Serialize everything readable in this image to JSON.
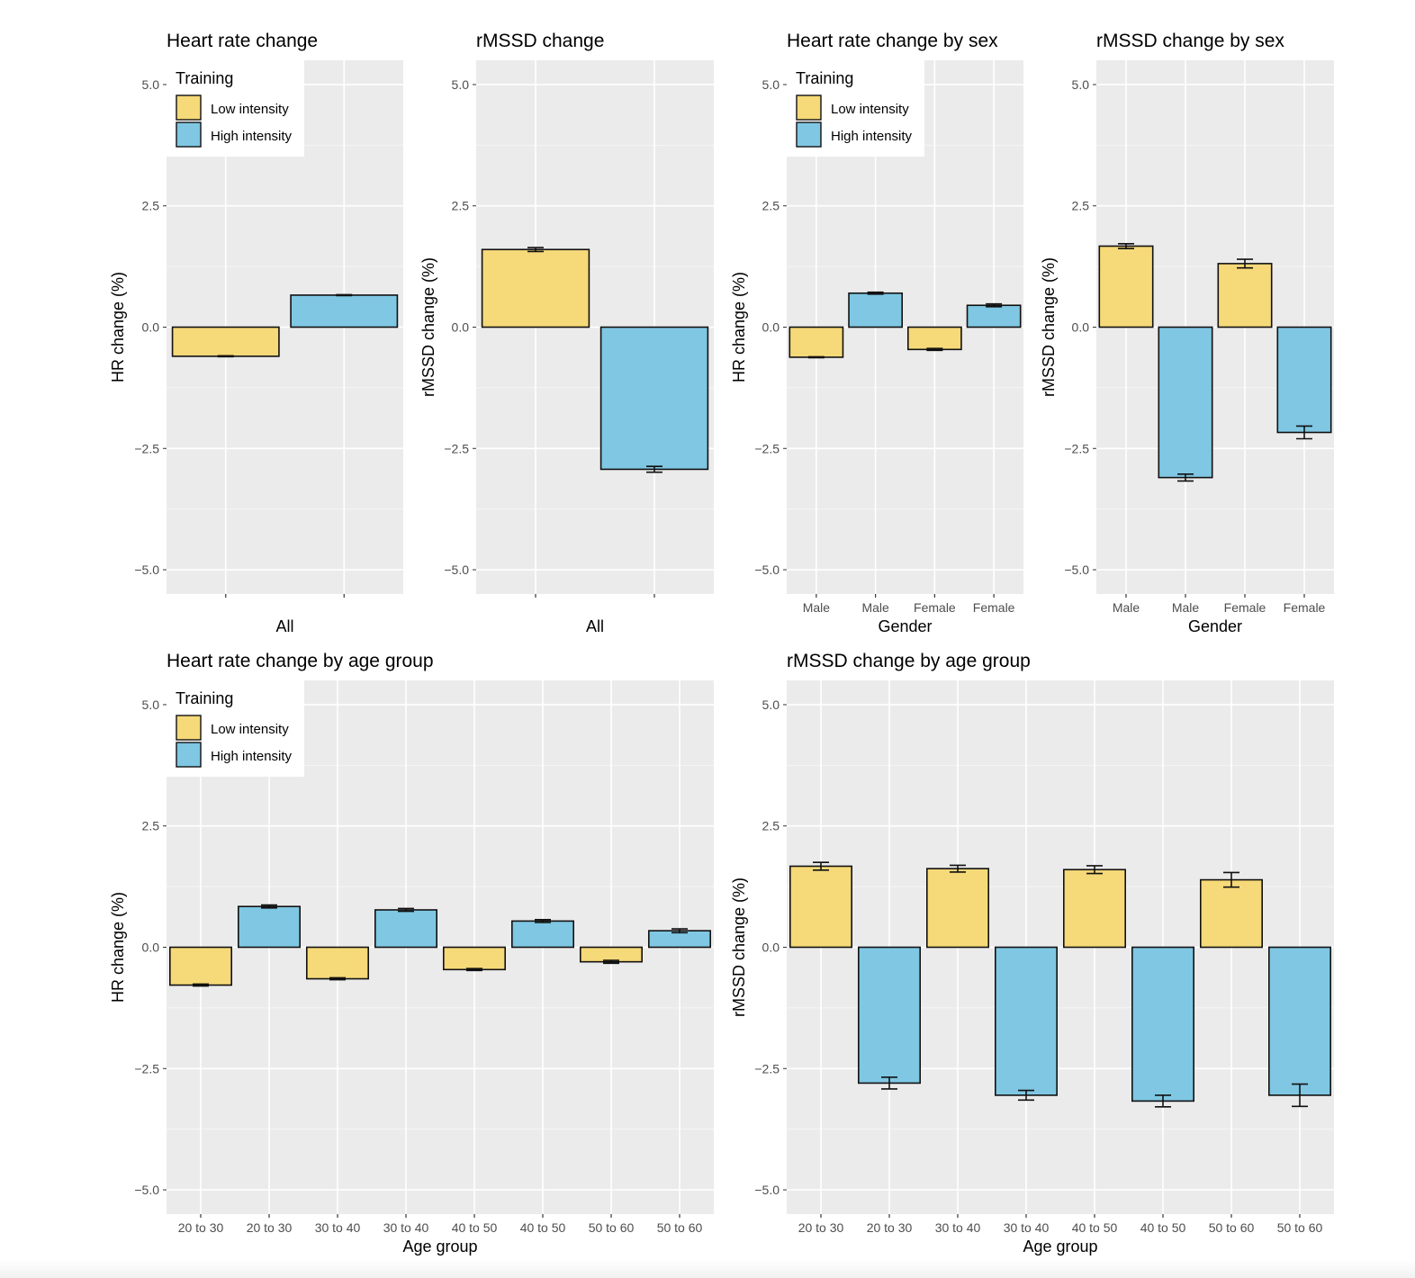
{
  "training_legend": {
    "title": "Training",
    "low_label": "Low intensity",
    "high_label": "High intensity",
    "low_color": "#F6D978",
    "high_color": "#7FC7E3"
  },
  "chart_data": [
    {
      "id": "hr-all",
      "type": "bar",
      "title": "Heart rate change",
      "xlabel": "All",
      "ylabel": "HR change (%)",
      "categories": [
        "",
        ""
      ],
      "groups": [
        "Low intensity",
        "High intensity"
      ],
      "values": [
        -0.6,
        0.66
      ],
      "errors": [
        0.01,
        0.01
      ],
      "ylim": [
        -5.5,
        5.5
      ],
      "yticks": [
        -5.0,
        -2.5,
        0.0,
        2.5,
        5.0
      ],
      "grid": true,
      "legend": "top-left"
    },
    {
      "id": "rmssd-all",
      "type": "bar",
      "title": "rMSSD change",
      "xlabel": "All",
      "ylabel": "rMSSD change (%)",
      "categories": [
        "",
        ""
      ],
      "groups": [
        "Low intensity",
        "High intensity"
      ],
      "values": [
        1.6,
        -2.93
      ],
      "errors": [
        0.04,
        0.06
      ],
      "ylim": [
        -5.5,
        5.5
      ],
      "yticks": [
        -5.0,
        -2.5,
        0.0,
        2.5,
        5.0
      ],
      "grid": true,
      "legend": "none"
    },
    {
      "id": "hr-sex",
      "type": "bar",
      "title": "Heart rate change by sex",
      "xlabel": "Gender",
      "ylabel": "HR change (%)",
      "categories": [
        "Male",
        "Male",
        "Female",
        "Female"
      ],
      "groups": [
        "Low intensity",
        "High intensity",
        "Low intensity",
        "High intensity"
      ],
      "values": [
        -0.62,
        0.7,
        -0.46,
        0.45
      ],
      "errors": [
        0.01,
        0.02,
        0.02,
        0.03
      ],
      "ylim": [
        -5.5,
        5.5
      ],
      "yticks": [
        -5.0,
        -2.5,
        0.0,
        2.5,
        5.0
      ],
      "grid": true,
      "legend": "top-left"
    },
    {
      "id": "rmssd-sex",
      "type": "bar",
      "title": "rMSSD change by sex",
      "xlabel": "Gender",
      "ylabel": "rMSSD change (%)",
      "categories": [
        "Male",
        "Male",
        "Female",
        "Female"
      ],
      "groups": [
        "Low intensity",
        "High intensity",
        "Low intensity",
        "High intensity"
      ],
      "values": [
        1.67,
        -3.1,
        1.31,
        -2.17
      ],
      "errors": [
        0.05,
        0.07,
        0.09,
        0.13
      ],
      "ylim": [
        -5.5,
        5.5
      ],
      "yticks": [
        -5.0,
        -2.5,
        0.0,
        2.5,
        5.0
      ],
      "grid": true,
      "legend": "none"
    },
    {
      "id": "hr-age",
      "type": "bar",
      "title": "Heart rate change by age group",
      "xlabel": "Age group",
      "ylabel": "HR change (%)",
      "categories": [
        "20 to 30",
        "20 to 30",
        "30 to 40",
        "30 to 40",
        "40 to 50",
        "40 to 50",
        "50 to 60",
        "50 to 60"
      ],
      "groups": [
        "Low intensity",
        "High intensity",
        "Low intensity",
        "High intensity",
        "Low intensity",
        "High intensity",
        "Low intensity",
        "High intensity"
      ],
      "values": [
        -0.78,
        0.84,
        -0.65,
        0.77,
        -0.46,
        0.54,
        -0.3,
        0.34
      ],
      "errors": [
        0.02,
        0.03,
        0.02,
        0.03,
        0.02,
        0.03,
        0.03,
        0.04
      ],
      "ylim": [
        -5.5,
        5.5
      ],
      "yticks": [
        -5.0,
        -2.5,
        0.0,
        2.5,
        5.0
      ],
      "grid": true,
      "legend": "top-left"
    },
    {
      "id": "rmssd-age",
      "type": "bar",
      "title": "rMSSD change by age group",
      "xlabel": "Age group",
      "ylabel": "rMSSD change (%)",
      "categories": [
        "20 to 30",
        "20 to 30",
        "30 to 40",
        "30 to 40",
        "40 to 50",
        "40 to 50",
        "50 to 60",
        "50 to 60"
      ],
      "groups": [
        "Low intensity",
        "High intensity",
        "Low intensity",
        "High intensity",
        "Low intensity",
        "High intensity",
        "Low intensity",
        "High intensity"
      ],
      "values": [
        1.67,
        -2.8,
        1.62,
        -3.05,
        1.6,
        -3.17,
        1.39,
        -3.05
      ],
      "errors": [
        0.08,
        0.12,
        0.07,
        0.1,
        0.08,
        0.12,
        0.15,
        0.23
      ],
      "ylim": [
        -5.5,
        5.5
      ],
      "yticks": [
        -5.0,
        -2.5,
        0.0,
        2.5,
        5.0
      ],
      "grid": true,
      "legend": "none"
    }
  ]
}
